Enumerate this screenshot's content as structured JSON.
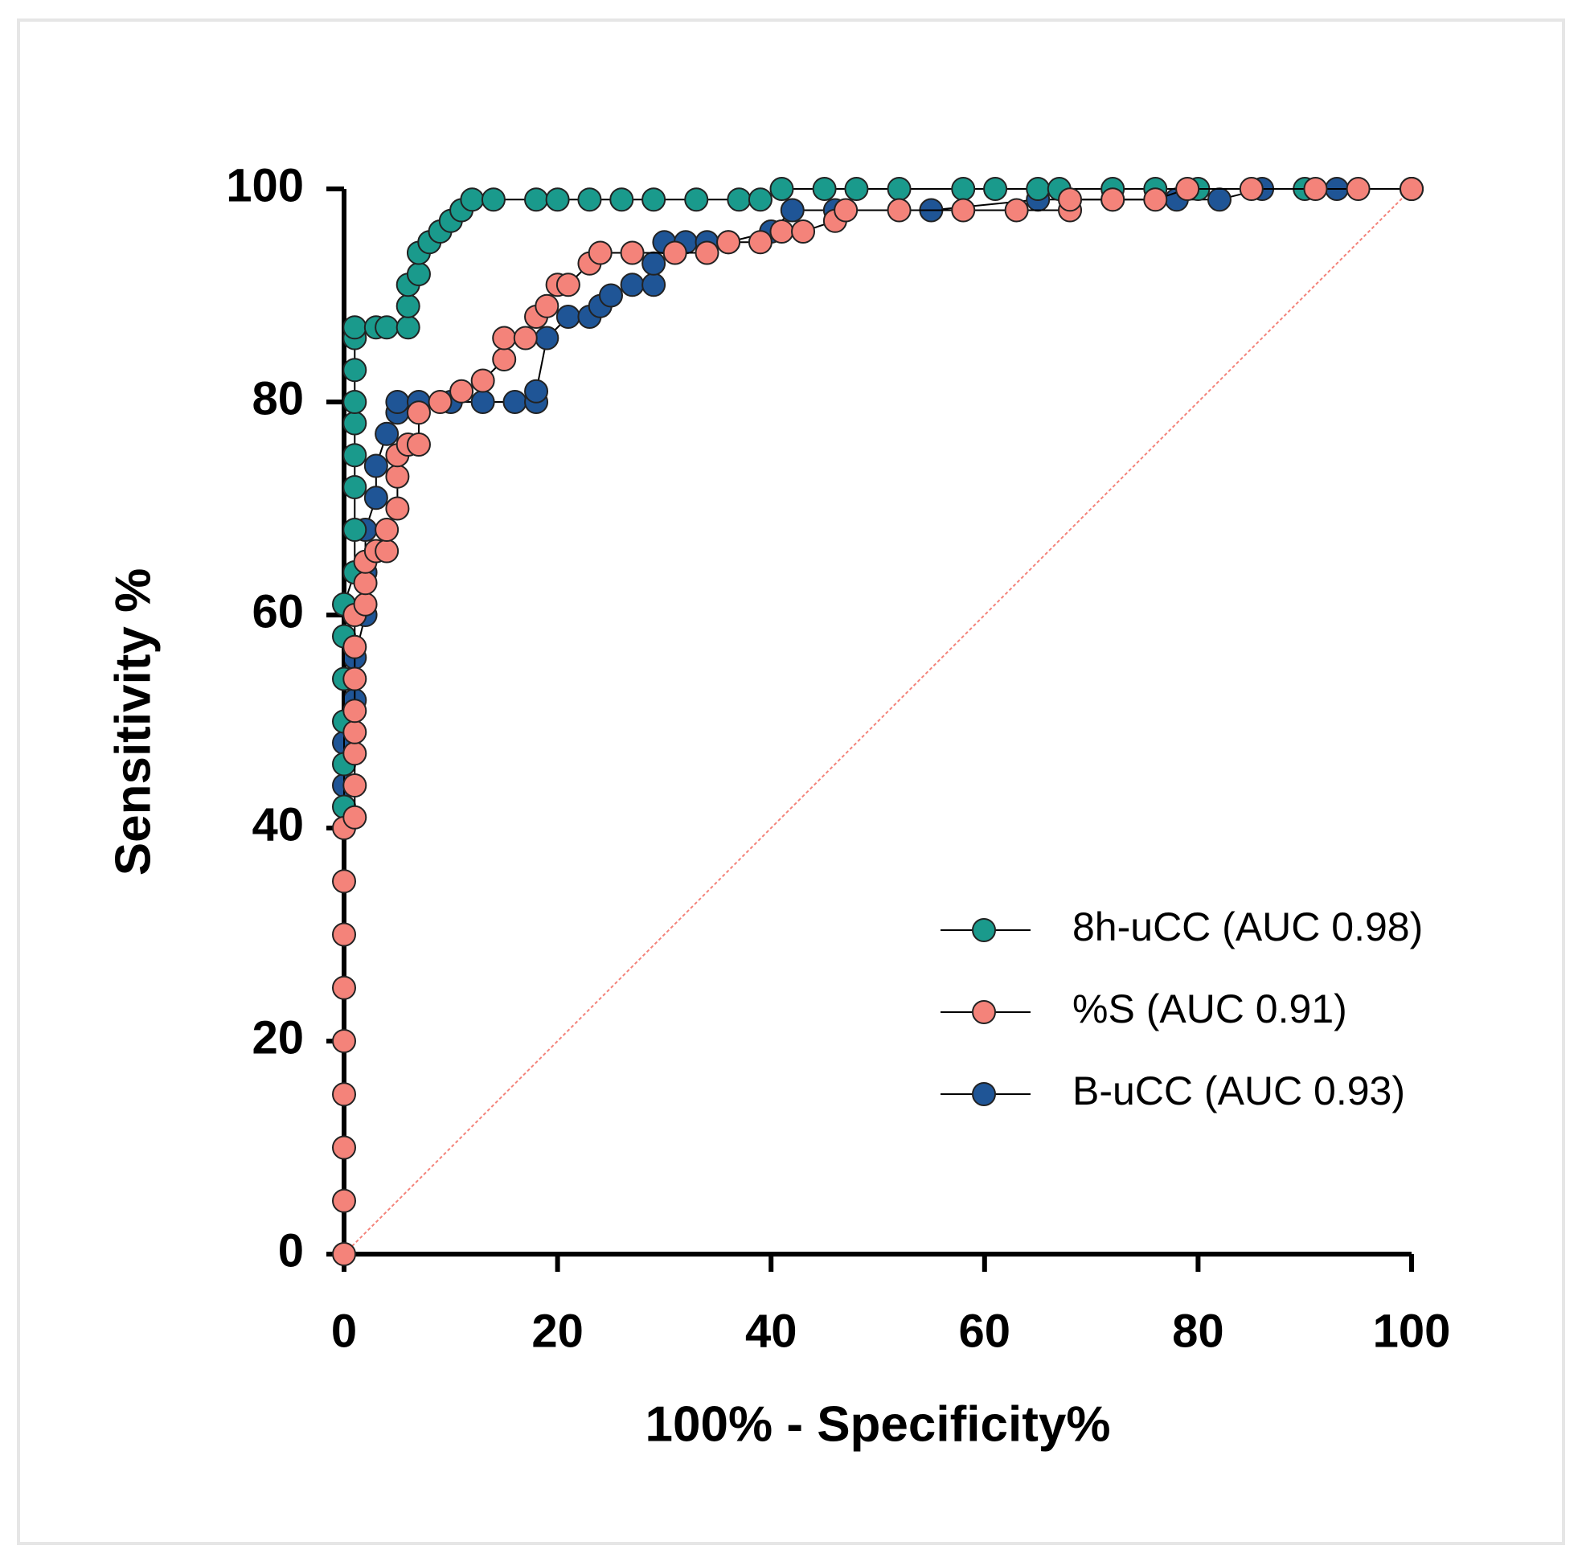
{
  "chart_data": {
    "type": "line",
    "xlabel": "100% - Specificity%",
    "ylabel": "Sensitivity %",
    "xlim": [
      0,
      100
    ],
    "ylim": [
      0,
      100
    ],
    "xticks": [
      0,
      20,
      40,
      60,
      80,
      100
    ],
    "yticks": [
      0,
      20,
      40,
      60,
      80,
      100
    ],
    "legend": "lower right",
    "series": [
      {
        "name": "8h-uCC (AUC 0.98)",
        "color": "#1a9a8c",
        "x": [
          0,
          0,
          0,
          0,
          0,
          0,
          1,
          1,
          1,
          1,
          1,
          1,
          1,
          1,
          1,
          3,
          4,
          6,
          6,
          6,
          7,
          7,
          8,
          9,
          10,
          11,
          12,
          14,
          18,
          20,
          23,
          26,
          29,
          33,
          37,
          39,
          41,
          45,
          48,
          52,
          58,
          61,
          65,
          67,
          72,
          76,
          80,
          90,
          100
        ],
        "values": [
          42,
          46,
          50,
          54,
          58,
          61,
          64,
          68,
          72,
          75,
          78,
          80,
          83,
          86,
          87,
          87,
          87,
          87,
          89,
          91,
          92,
          94,
          95,
          96,
          97,
          98,
          99,
          99,
          99,
          99,
          99,
          99,
          99,
          99,
          99,
          99,
          100,
          100,
          100,
          100,
          100,
          100,
          100,
          100,
          100,
          100,
          100,
          100,
          100
        ]
      },
      {
        "name": "%S (AUC 0.91)",
        "color": "#f4837a",
        "x": [
          0,
          0,
          0,
          0,
          0,
          0,
          0,
          0,
          0,
          1,
          1,
          1,
          1,
          1,
          1,
          1,
          1,
          2,
          2,
          2,
          3,
          4,
          4,
          5,
          5,
          5,
          6,
          7,
          7,
          9,
          11,
          13,
          15,
          15,
          17,
          18,
          19,
          20,
          21,
          23,
          24,
          27,
          31,
          34,
          36,
          39,
          41,
          43,
          46,
          47,
          52,
          58,
          63,
          68,
          68,
          72,
          76,
          79,
          85,
          91,
          95,
          100
        ],
        "values": [
          0,
          5,
          10,
          15,
          20,
          25,
          30,
          35,
          40,
          41,
          44,
          47,
          49,
          51,
          54,
          57,
          60,
          61,
          63,
          65,
          66,
          66,
          68,
          70,
          73,
          75,
          76,
          76,
          79,
          80,
          81,
          82,
          84,
          86,
          86,
          88,
          89,
          91,
          91,
          93,
          94,
          94,
          94,
          94,
          95,
          95,
          96,
          96,
          97,
          98,
          98,
          98,
          98,
          98,
          99,
          99,
          99,
          100,
          100,
          100,
          100,
          100
        ]
      },
      {
        "name": "B-uCC (AUC 0.93)",
        "color": "#1f5596",
        "x": [
          0,
          0,
          1,
          1,
          2,
          2,
          2,
          3,
          3,
          4,
          5,
          5,
          7,
          10,
          13,
          16,
          18,
          18,
          19,
          21,
          23,
          24,
          25,
          27,
          29,
          29,
          30,
          32,
          34,
          36,
          40,
          42,
          46,
          55,
          65,
          72,
          78,
          82,
          86,
          93,
          100
        ],
        "values": [
          44,
          48,
          52,
          56,
          60,
          64,
          68,
          71,
          74,
          77,
          79,
          80,
          80,
          80,
          80,
          80,
          80,
          81,
          86,
          88,
          88,
          89,
          90,
          91,
          91,
          93,
          95,
          95,
          95,
          95,
          96,
          98,
          98,
          98,
          99,
          99,
          99,
          99,
          100,
          100,
          100
        ]
      }
    ]
  }
}
